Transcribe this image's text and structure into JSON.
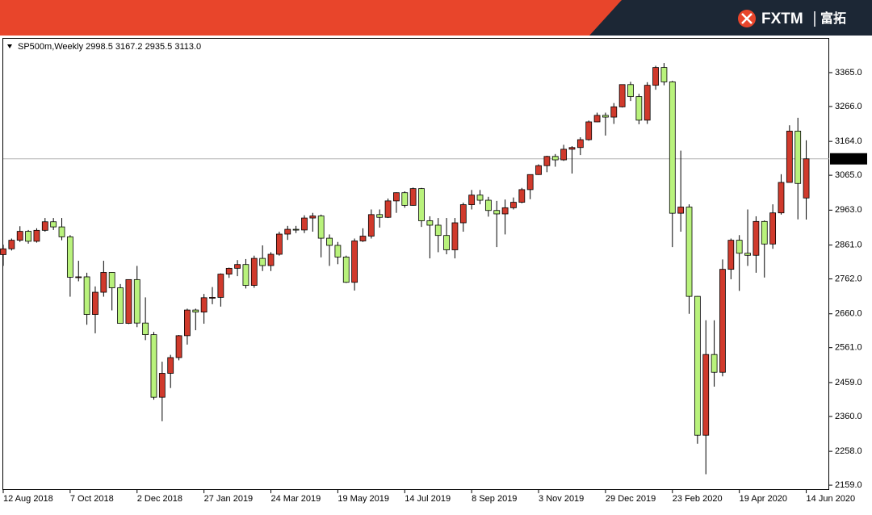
{
  "banner": {
    "brand": "FXTM",
    "brand_cn": "富拓"
  },
  "chart_data": {
    "type": "candlestick",
    "header": {
      "symbol": "SP500m,Weekly",
      "values": [
        "2998.5",
        "3167.2",
        "2935.5",
        "3113.0"
      ]
    },
    "categories": [
      "12 Aug 2018",
      null,
      null,
      null,
      null,
      null,
      null,
      null,
      "7 Oct 2018",
      null,
      null,
      null,
      null,
      null,
      null,
      null,
      "2 Dec 2018",
      null,
      null,
      null,
      null,
      null,
      null,
      null,
      "27 Jan 2019",
      null,
      null,
      null,
      null,
      null,
      null,
      null,
      "24 Mar 2019",
      null,
      null,
      null,
      null,
      null,
      null,
      null,
      "19 May 2019",
      null,
      null,
      null,
      null,
      null,
      null,
      null,
      "14 Jul 2019",
      null,
      null,
      null,
      null,
      null,
      null,
      null,
      "8 Sep 2019",
      null,
      null,
      null,
      null,
      null,
      null,
      null,
      "3 Nov 2019",
      null,
      null,
      null,
      null,
      null,
      null,
      null,
      "29 Dec 2019",
      null,
      null,
      null,
      null,
      null,
      null,
      null,
      "23 Feb 2020",
      null,
      null,
      null,
      null,
      null,
      null,
      null,
      "19 Apr 2020",
      null,
      null,
      null,
      null,
      null,
      null,
      null,
      "14 Jun 2020"
    ],
    "open": [
      2833,
      2850,
      2875,
      2901,
      2872,
      2904,
      2929,
      2914,
      2885,
      2767,
      2768,
      2658,
      2723,
      2781,
      2736,
      2632,
      2760,
      2633,
      2599,
      2416,
      2486,
      2532,
      2596,
      2671,
      2665,
      2707,
      2708,
      2776,
      2793,
      2804,
      2743,
      2822,
      2801,
      2834,
      2893,
      2907,
      2905,
      2940,
      2946,
      2881,
      2860,
      2826,
      2752,
      2873,
      2887,
      2950,
      2942,
      2990,
      3014,
      2977,
      3026,
      2932,
      2919,
      2889,
      2847,
      2926,
      2979,
      3007,
      2992,
      2962,
      2952,
      2970,
      2986,
      3023,
      3067,
      3093,
      3120,
      3110,
      3141,
      3146,
      3169,
      3221,
      3240,
      3235,
      3265,
      3330,
      3295,
      3226,
      3328,
      3380,
      3338,
      2954,
      2972,
      2711,
      2305,
      2541,
      2489,
      2790,
      2875,
      2837,
      2831,
      2930,
      2864,
      2955,
      3044,
      3194,
      2998.5
    ],
    "high": [
      2862,
      2880,
      2916,
      2905,
      2910,
      2940,
      2940,
      2940,
      2890,
      2815,
      2780,
      2740,
      2815,
      2782,
      2747,
      2760,
      2800,
      2708,
      2607,
      2520,
      2540,
      2598,
      2675,
      2675,
      2718,
      2738,
      2778,
      2795,
      2817,
      2820,
      2830,
      2860,
      2840,
      2900,
      2917,
      2917,
      2948,
      2955,
      2950,
      2892,
      2870,
      2830,
      2880,
      2910,
      2965,
      2965,
      2997,
      3015,
      3018,
      3029,
      3028,
      2945,
      2940,
      2940,
      2940,
      2985,
      3022,
      3022,
      3002,
      2990,
      2994,
      3000,
      3028,
      3067,
      3097,
      3122,
      3127,
      3154,
      3150,
      3176,
      3225,
      3248,
      3248,
      3276,
      3330,
      3338,
      3303,
      3337,
      3385,
      3393,
      3341,
      3137,
      2980,
      2712,
      2641,
      2641,
      2819,
      2880,
      2890,
      2965,
      2945,
      2933,
      2980,
      3068,
      3211,
      3233,
      3167.2
    ],
    "low": [
      2800,
      2845,
      2870,
      2865,
      2868,
      2900,
      2905,
      2875,
      2710,
      2755,
      2628,
      2603,
      2710,
      2670,
      2631,
      2630,
      2621,
      2583,
      2409,
      2346,
      2443,
      2524,
      2570,
      2612,
      2631,
      2688,
      2681,
      2765,
      2770,
      2734,
      2736,
      2785,
      2785,
      2830,
      2876,
      2896,
      2896,
      2900,
      2825,
      2800,
      2805,
      2750,
      2728,
      2870,
      2880,
      2912,
      2940,
      2955,
      2970,
      2976,
      2914,
      2822,
      2840,
      2834,
      2822,
      2900,
      2965,
      2980,
      2944,
      2855,
      2892,
      2965,
      2983,
      2995,
      3066,
      3074,
      3090,
      3107,
      3070,
      3124,
      3166,
      3220,
      3181,
      3215,
      3263,
      3282,
      3214,
      3215,
      3315,
      3328,
      2855,
      2900,
      2660,
      2280,
      2191,
      2447,
      2477,
      2761,
      2727,
      2800,
      2780,
      2766,
      2850,
      2950,
      3044,
      2936,
      2935.5
    ],
    "close": [
      2850,
      2875,
      2901,
      2872,
      2904,
      2929,
      2914,
      2885,
      2767,
      2768,
      2658,
      2723,
      2781,
      2736,
      2632,
      2760,
      2633,
      2599,
      2416,
      2486,
      2532,
      2596,
      2671,
      2665,
      2707,
      2708,
      2776,
      2793,
      2804,
      2743,
      2822,
      2801,
      2834,
      2893,
      2907,
      2905,
      2940,
      2946,
      2881,
      2860,
      2826,
      2752,
      2873,
      2887,
      2950,
      2942,
      2990,
      3014,
      2977,
      3026,
      2932,
      2919,
      2889,
      2847,
      2926,
      2979,
      3007,
      2992,
      2962,
      2952,
      2970,
      2986,
      3023,
      3067,
      3093,
      3120,
      3110,
      3141,
      3146,
      3169,
      3221,
      3240,
      3235,
      3265,
      3330,
      3295,
      3226,
      3328,
      3380,
      3338,
      2954,
      2972,
      2711,
      2305,
      2541,
      2489,
      2790,
      2875,
      2837,
      2831,
      2930,
      2864,
      2955,
      3044,
      3194,
      3041,
      3113
    ],
    "up_color": "#d03a2c",
    "down_color": "#b9f27c",
    "ylim": [
      2145,
      3464
    ],
    "yticks": [
      {
        "value": 2159,
        "label": "2159.0"
      },
      {
        "value": 2258,
        "label": "2258.0"
      },
      {
        "value": 2360,
        "label": "2360.0"
      },
      {
        "value": 2459,
        "label": "2459.0"
      },
      {
        "value": 2561,
        "label": "2561.0"
      },
      {
        "value": 2660,
        "label": "2660.0"
      },
      {
        "value": 2762,
        "label": "2762.0"
      },
      {
        "value": 2861,
        "label": "2861.0"
      },
      {
        "value": 2963,
        "label": "2963.0"
      },
      {
        "value": 3065,
        "label": "3065.0"
      },
      {
        "value": 3164,
        "label": "3164.0"
      },
      {
        "value": 3266,
        "label": "3266.0"
      },
      {
        "value": 3365,
        "label": "3365.0"
      }
    ],
    "last_price": {
      "value": 3113,
      "label": "3113.0"
    }
  }
}
